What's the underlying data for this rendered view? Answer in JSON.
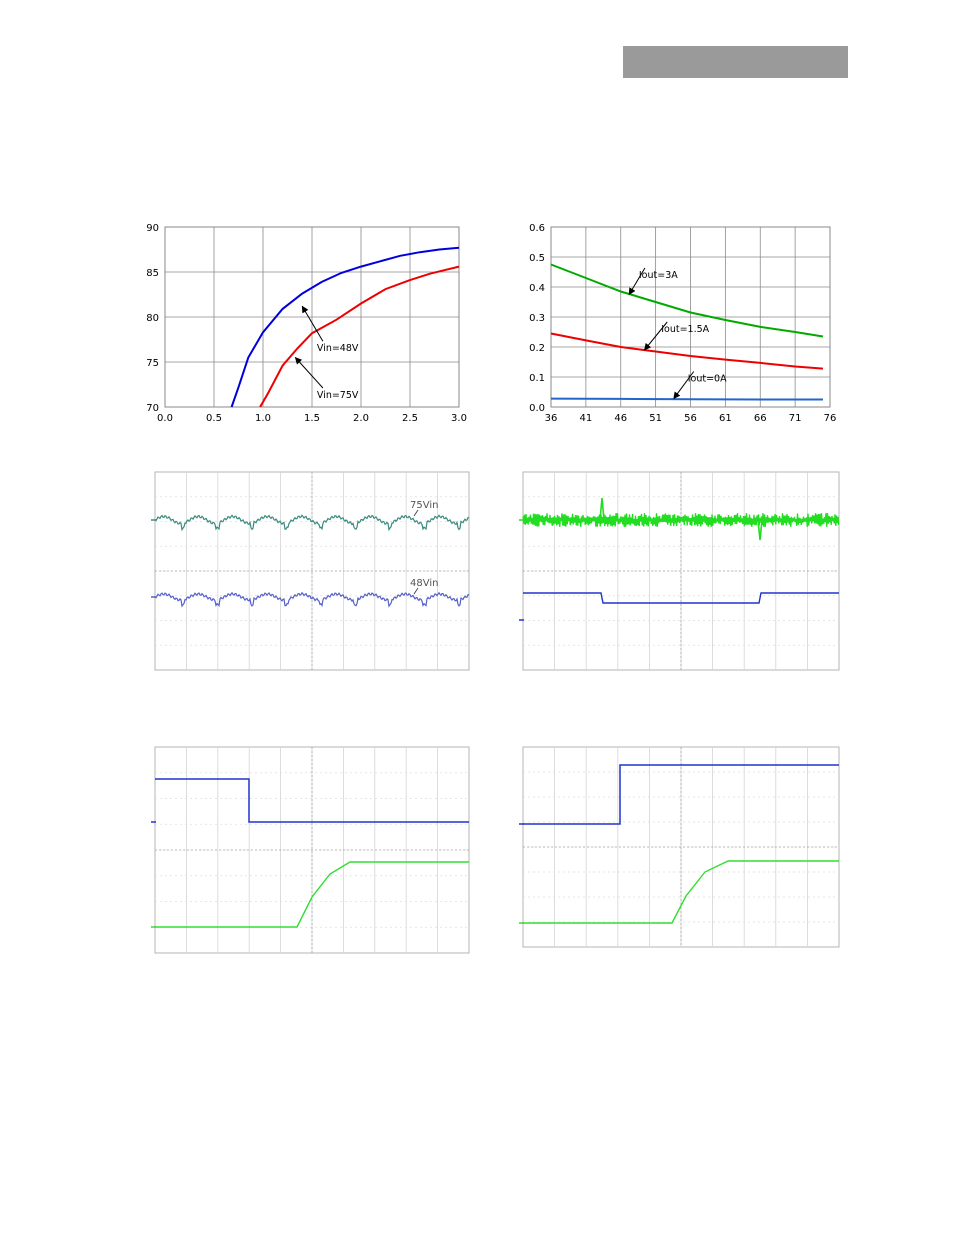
{
  "page": {
    "header_bar_color": "#9a9a9a"
  },
  "chart_data": [
    {
      "id": "efficiency",
      "type": "line",
      "title": "",
      "xlabel": "",
      "ylabel": "",
      "xlim": [
        0.0,
        3.0
      ],
      "ylim": [
        70,
        90
      ],
      "x_ticks": [
        "0.0",
        "0.5",
        "1.0",
        "1.5",
        "2.0",
        "2.5",
        "3.0"
      ],
      "y_ticks": [
        "70",
        "75",
        "80",
        "85",
        "90"
      ],
      "grid": true,
      "series": [
        {
          "name": "Vin=48V",
          "color": "#0000dd",
          "x": [
            0.68,
            0.75,
            0.85,
            1.0,
            1.2,
            1.4,
            1.6,
            1.8,
            2.0,
            2.2,
            2.4,
            2.6,
            2.8,
            3.0
          ],
          "y": [
            70.0,
            72.2,
            75.5,
            78.3,
            80.9,
            82.6,
            83.9,
            84.9,
            85.6,
            86.2,
            86.8,
            87.2,
            87.5,
            87.7
          ]
        },
        {
          "name": "Vin=75V",
          "color": "#ee0000",
          "x": [
            0.97,
            1.05,
            1.2,
            1.35,
            1.5,
            1.75,
            2.0,
            2.25,
            2.5,
            2.7,
            2.85,
            3.0
          ],
          "y": [
            70.0,
            71.5,
            74.6,
            76.5,
            78.2,
            79.7,
            81.5,
            83.1,
            84.1,
            84.8,
            85.2,
            85.6
          ]
        }
      ],
      "annotations": [
        {
          "text": "Vin=48V",
          "at": [
            1.55,
            76.2
          ],
          "arrow_to": [
            1.4,
            81.2
          ]
        },
        {
          "text": "Vin=75V",
          "at": [
            1.55,
            71.0
          ],
          "arrow_to": [
            1.33,
            75.5
          ]
        }
      ]
    },
    {
      "id": "power-dissipation",
      "type": "line",
      "title": "",
      "xlabel": "",
      "ylabel": "",
      "xlim": [
        36,
        76
      ],
      "ylim": [
        0.0,
        0.6
      ],
      "x_ticks": [
        "36",
        "41",
        "46",
        "51",
        "56",
        "61",
        "66",
        "71",
        "76"
      ],
      "y_ticks": [
        "0.0",
        "0.1",
        "0.2",
        "0.3",
        "0.4",
        "0.5",
        "0.6"
      ],
      "grid": true,
      "series": [
        {
          "name": "Iout=3A",
          "color": "#00aa00",
          "x": [
            36,
            41,
            46,
            51,
            56,
            61,
            66,
            71,
            75
          ],
          "y": [
            0.475,
            0.43,
            0.385,
            0.35,
            0.315,
            0.29,
            0.267,
            0.25,
            0.235
          ]
        },
        {
          "name": "Iout=1.5A",
          "color": "#ee0000",
          "x": [
            36,
            41,
            46,
            51,
            56,
            61,
            66,
            71,
            75
          ],
          "y": [
            0.245,
            0.222,
            0.2,
            0.185,
            0.17,
            0.158,
            0.147,
            0.135,
            0.128
          ]
        },
        {
          "name": "Iout=0A",
          "color": "#2266cc",
          "x": [
            36,
            46,
            56,
            66,
            75
          ],
          "y": [
            0.028,
            0.027,
            0.026,
            0.025,
            0.025
          ]
        }
      ],
      "annotations": [
        {
          "text": "Iout=3A",
          "at": [
            48.6,
            0.43
          ],
          "arrow_to": [
            47.2,
            0.375
          ]
        },
        {
          "text": "Iout=1.5A",
          "at": [
            51.8,
            0.25
          ],
          "arrow_to": [
            49.4,
            0.19
          ]
        },
        {
          "text": "Iout=0A",
          "at": [
            55.6,
            0.085
          ],
          "arrow_to": [
            53.6,
            0.028
          ]
        }
      ]
    },
    {
      "id": "scope-ripple",
      "type": "line",
      "labels": [
        "75Vin",
        "48Vin"
      ]
    },
    {
      "id": "scope-load-step",
      "type": "line"
    },
    {
      "id": "scope-turn-on-1",
      "type": "line"
    },
    {
      "id": "scope-turn-on-2",
      "type": "line"
    }
  ]
}
